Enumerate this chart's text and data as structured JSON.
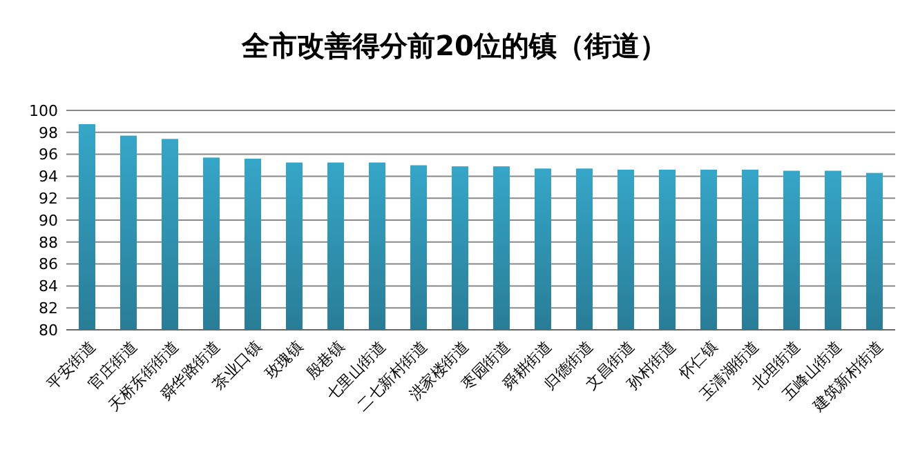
{
  "chart_data": {
    "type": "bar",
    "title": "全市改善得分前20位的镇（街道）",
    "categories": [
      "平安街道",
      "官庄街道",
      "天桥东街街道",
      "舜华路街道",
      "茶业口镇",
      "玫瑰镇",
      "殷巷镇",
      "七里山街道",
      "二七新村街道",
      "洪家楼街道",
      "枣园街道",
      "舜耕街道",
      "归德街道",
      "文昌街道",
      "孙村街道",
      "怀仁镇",
      "玉清湖街道",
      "北坦街道",
      "五峰山街道",
      "建筑新村街道"
    ],
    "values": [
      98.75,
      97.7,
      97.4,
      95.7,
      95.6,
      95.25,
      95.25,
      95.25,
      95.0,
      94.9,
      94.9,
      94.7,
      94.7,
      94.6,
      94.6,
      94.6,
      94.6,
      94.5,
      94.5,
      94.3
    ],
    "color": "#36a6c8",
    "ylim": [
      80,
      100
    ],
    "yticks": [
      80,
      82,
      84,
      86,
      88,
      90,
      92,
      94,
      96,
      98,
      100
    ],
    "grid": "y"
  }
}
